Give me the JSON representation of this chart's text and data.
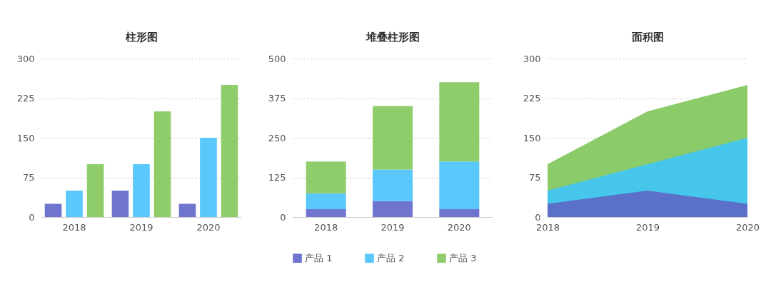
{
  "chart_data": [
    {
      "type": "bar",
      "title": "柱形图",
      "categories": [
        "2018",
        "2019",
        "2020"
      ],
      "series": [
        {
          "color": "#6f74cf",
          "values": [
            25,
            50,
            25
          ]
        },
        {
          "color": "#5ac8fa",
          "values": [
            50,
            100,
            150
          ]
        },
        {
          "color": "#8fcd6a",
          "values": [
            100,
            200,
            250
          ]
        }
      ],
      "ylim": [
        0,
        300
      ],
      "yticks": [
        0,
        75,
        150,
        225,
        300
      ],
      "grid": "y",
      "legend": false
    },
    {
      "type": "bar",
      "stacked": true,
      "title": "堆叠柱形图",
      "categories": [
        "2018",
        "2019",
        "2020"
      ],
      "series": [
        {
          "name": "产品 1",
          "color": "#6f74cf",
          "values": [
            25,
            50,
            25
          ]
        },
        {
          "name": "产品 2",
          "color": "#5ac8fa",
          "values": [
            50,
            100,
            150
          ]
        },
        {
          "name": "产品 3",
          "color": "#8fcd6a",
          "values": [
            100,
            200,
            250
          ]
        }
      ],
      "ylim": [
        0,
        500
      ],
      "yticks": [
        0,
        125,
        250,
        375,
        500
      ],
      "grid": "y",
      "legend": "bottom"
    },
    {
      "type": "area",
      "title": "面积图",
      "categories": [
        "2018",
        "2019",
        "2020"
      ],
      "series": [
        {
          "color": "#5a70c9",
          "values": [
            25,
            50,
            25
          ]
        },
        {
          "color": "#45c6ea",
          "values": [
            50,
            100,
            150
          ]
        },
        {
          "color": "#8bcb6a",
          "values": [
            100,
            200,
            250
          ]
        }
      ],
      "ylim": [
        0,
        300
      ],
      "yticks": [
        0,
        75,
        150,
        225,
        300
      ],
      "grid": "y",
      "legend": false
    }
  ]
}
